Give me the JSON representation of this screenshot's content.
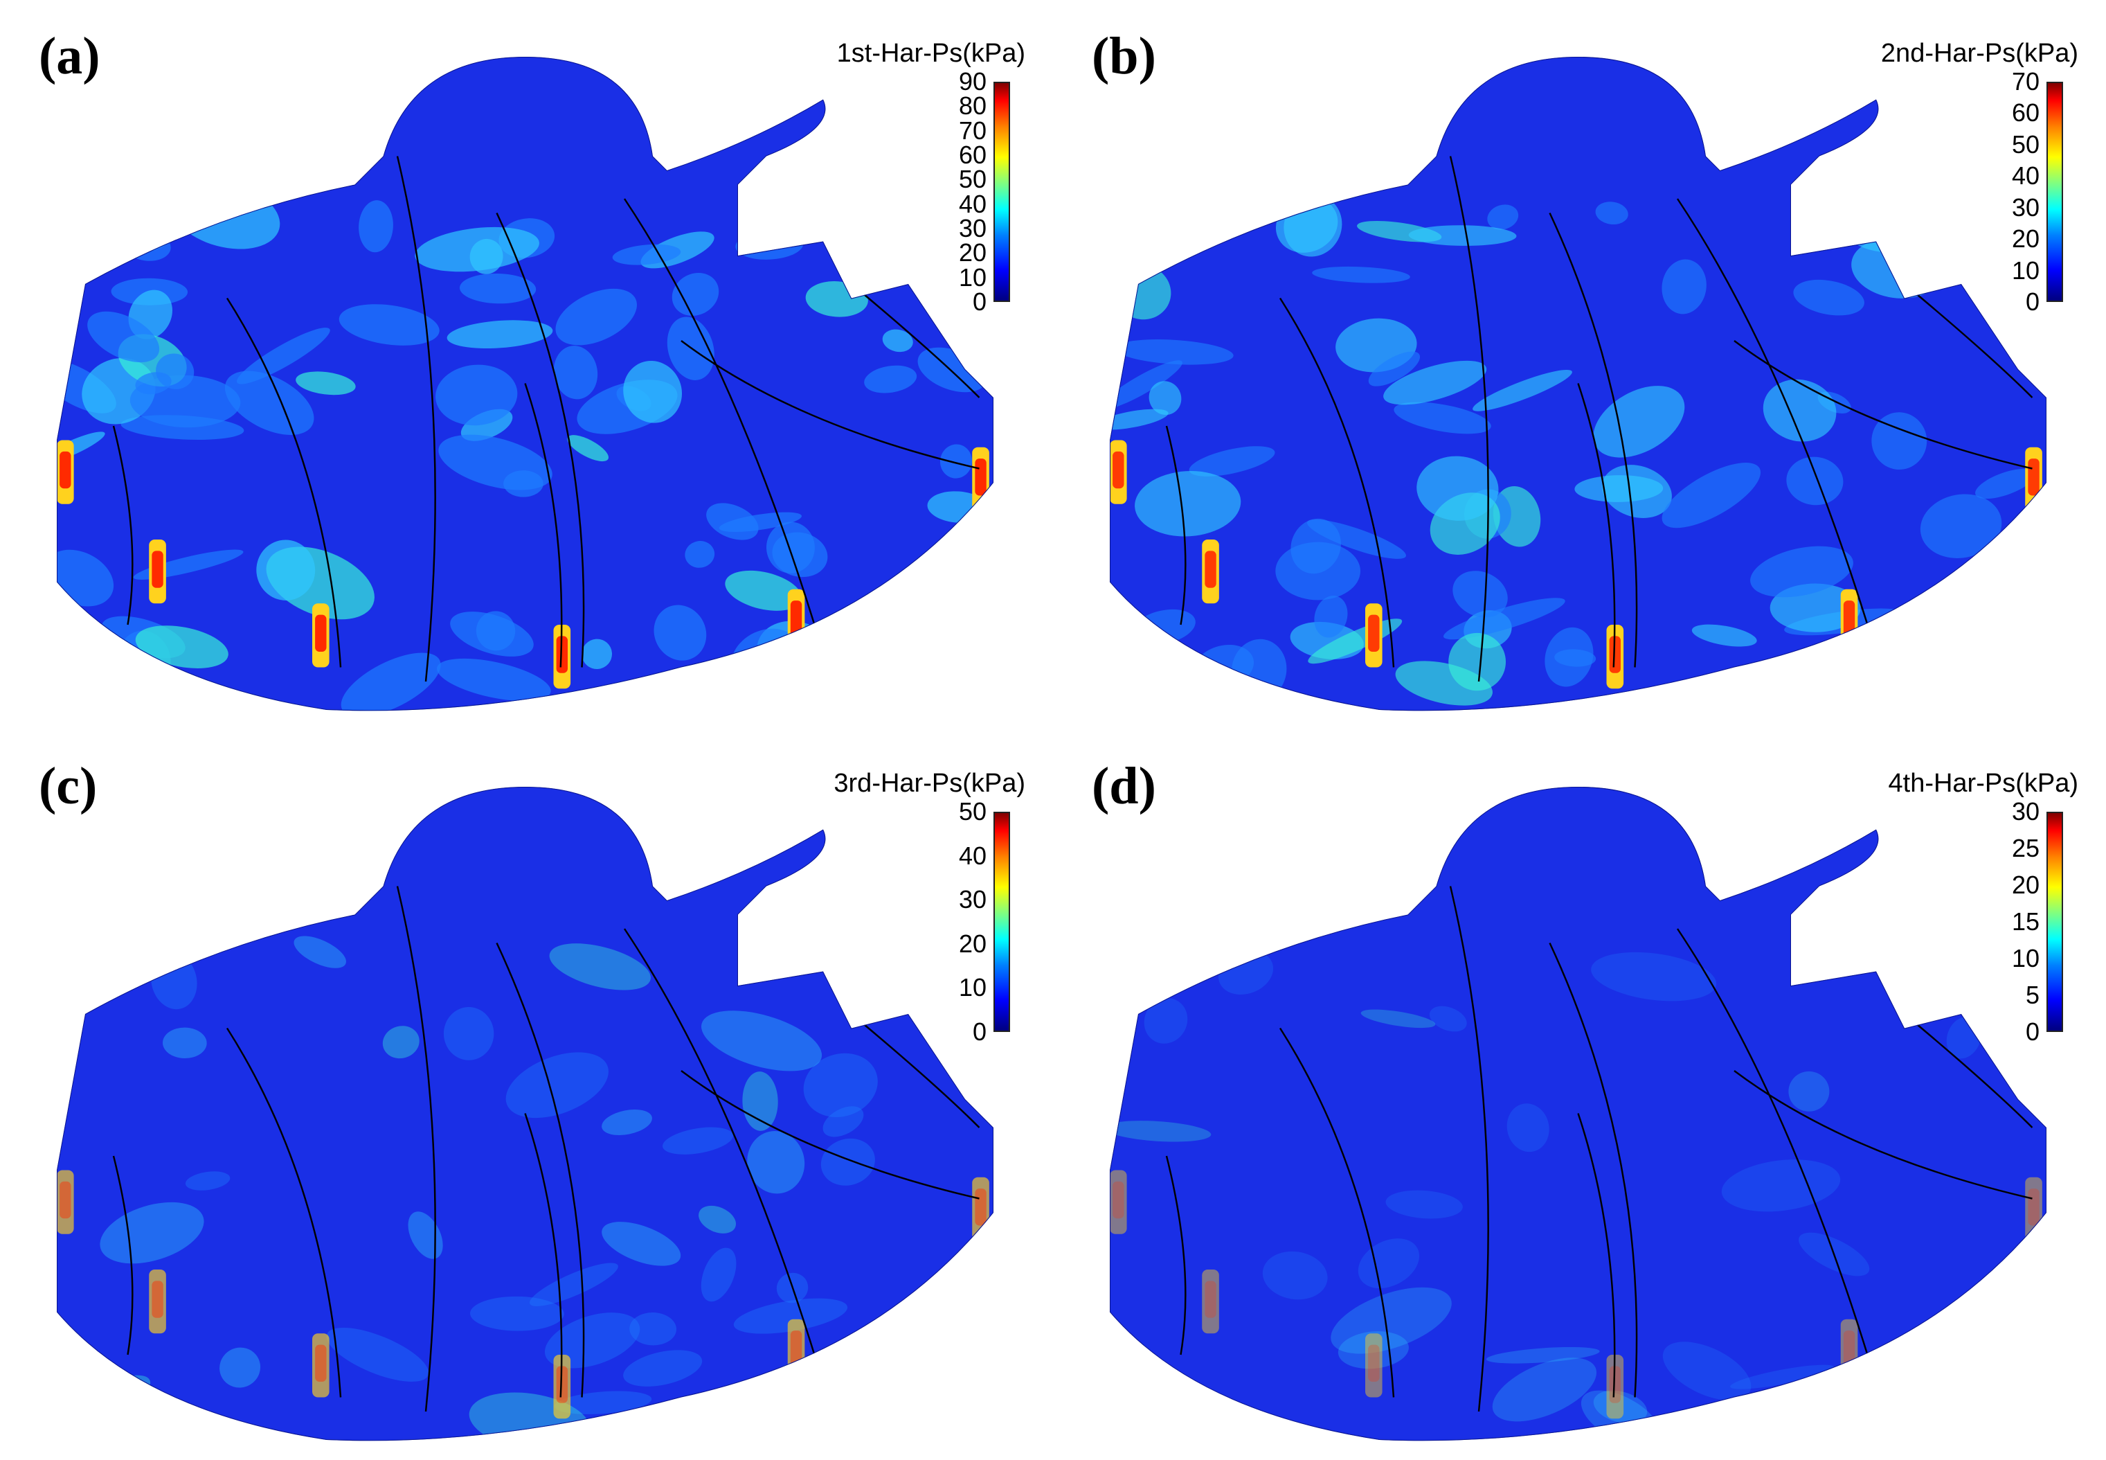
{
  "panels": [
    {
      "label": "(a)",
      "colorbar_title": "1st-Har-Ps(kPa)",
      "ticks": [
        "90",
        "80",
        "70",
        "60",
        "50",
        "40",
        "30",
        "20",
        "10",
        "0"
      ],
      "max": 90,
      "step": 10
    },
    {
      "label": "(b)",
      "colorbar_title": "2nd-Har-Ps(kPa)",
      "ticks": [
        "70",
        "60",
        "50",
        "40",
        "30",
        "20",
        "10",
        "0"
      ],
      "max": 70,
      "step": 10
    },
    {
      "label": "(c)",
      "colorbar_title": "3rd-Har-Ps(kPa)",
      "ticks": [
        "50",
        "40",
        "30",
        "20",
        "10",
        "0"
      ],
      "max": 50,
      "step": 10
    },
    {
      "label": "(d)",
      "colorbar_title": "4th-Har-Ps(kPa)",
      "ticks": [
        "30",
        "25",
        "20",
        "15",
        "10",
        "5",
        "0"
      ],
      "max": 30,
      "step": 5
    }
  ],
  "colors": {
    "low": "#0000ff",
    "mid": "#00ffff",
    "high": "#ff0000"
  }
}
